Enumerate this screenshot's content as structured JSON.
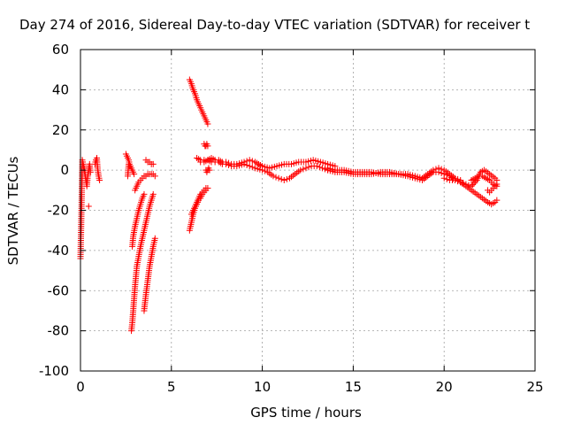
{
  "chart_data": {
    "type": "scatter",
    "title": "Day 274 of 2016, Sidereal Day-to-day VTEC variation (SDTVAR) for receiver t",
    "xlabel": "GPS time / hours",
    "ylabel": "SDTVAR / TECUs",
    "xlim": [
      0,
      25
    ],
    "ylim": [
      -100,
      60
    ],
    "xticks": [
      0,
      5,
      10,
      15,
      20,
      25
    ],
    "yticks": [
      -100,
      -80,
      -60,
      -40,
      -20,
      0,
      20,
      40,
      60
    ],
    "grid": true,
    "marker": "+",
    "color": "#ff0000",
    "segments": [
      {
        "x": [
          0,
          0.05,
          0.1,
          0.15,
          0.2
        ],
        "y": [
          -44,
          -22,
          5,
          3,
          0
        ]
      },
      {
        "x": [
          0.2,
          0.25,
          0.3,
          0.35,
          0.4,
          0.45,
          0.5,
          0.55
        ],
        "y": [
          1,
          -2,
          -5,
          -8,
          -3,
          0,
          3,
          -1
        ]
      },
      {
        "x": [
          0.45
        ],
        "y": [
          -18
        ]
      },
      {
        "x": [
          0.8,
          0.85,
          0.9,
          0.95,
          1.0,
          1.05
        ],
        "y": [
          3,
          5,
          6,
          0,
          -3,
          -5
        ]
      },
      {
        "x": [
          2.5,
          2.55,
          2.6,
          2.65,
          2.7,
          2.75,
          2.8,
          2.85,
          2.9,
          2.95
        ],
        "y": [
          8,
          7,
          6,
          5,
          3,
          2,
          1,
          0,
          -1,
          -2
        ]
      },
      {
        "x": [
          2.6,
          2.65,
          2.7
        ],
        "y": [
          -3,
          3,
          2
        ]
      },
      {
        "x": [
          2.8,
          2.85,
          2.9,
          2.95,
          3.0,
          3.05,
          3.1
        ],
        "y": [
          -80,
          -76,
          -70,
          -64,
          -58,
          -53,
          -48
        ]
      },
      {
        "x": [
          3.1,
          3.2,
          3.3,
          3.4,
          3.5,
          3.6,
          3.7,
          3.8,
          3.9,
          4.0
        ],
        "y": [
          -48,
          -43,
          -38,
          -34,
          -30,
          -26,
          -22,
          -18,
          -15,
          -12
        ]
      },
      {
        "x": [
          2.85,
          2.9,
          3.0,
          3.1,
          3.2,
          3.3,
          3.4,
          3.5
        ],
        "y": [
          -38,
          -33,
          -28,
          -24,
          -20,
          -17,
          -14,
          -12
        ]
      },
      {
        "x": [
          3.0,
          3.1,
          3.2,
          3.3,
          3.4,
          3.5,
          3.6,
          3.7,
          3.8,
          3.9,
          4.0,
          4.1
        ],
        "y": [
          -10,
          -8,
          -6,
          -5,
          -4,
          -3,
          -3,
          -2,
          -2,
          -2,
          -2,
          -3
        ]
      },
      {
        "x": [
          3.5,
          3.6,
          3.7,
          3.8,
          3.9,
          4.0,
          4.1
        ],
        "y": [
          -70,
          -62,
          -55,
          -48,
          -43,
          -38,
          -34
        ]
      },
      {
        "x": [
          3.6,
          3.7,
          3.8,
          3.9,
          4.0
        ],
        "y": [
          5,
          4,
          4,
          3,
          3
        ]
      },
      {
        "x": [
          6.0,
          6.1,
          6.2,
          6.3,
          6.4,
          6.5,
          6.6,
          6.7,
          6.8,
          6.9,
          7.0
        ],
        "y": [
          45,
          43,
          40,
          38,
          35,
          33,
          31,
          29,
          27,
          25,
          23
        ]
      },
      {
        "x": [
          6.0,
          6.1,
          6.2,
          6.3,
          6.4,
          6.5,
          6.6,
          6.7,
          6.8,
          6.9,
          7.0
        ],
        "y": [
          -30,
          -26,
          -22,
          -19,
          -17,
          -15,
          -14,
          -12,
          -11,
          -10,
          -9
        ]
      },
      {
        "x": [
          6.1,
          6.2,
          6.3,
          6.4,
          6.5,
          6.6,
          6.7,
          6.8,
          6.9
        ],
        "y": [
          -22,
          -20,
          -18,
          -16,
          -14,
          -12,
          -11,
          -10,
          -9
        ]
      },
      {
        "x": [
          6.8,
          6.85,
          6.9,
          6.95,
          7.0
        ],
        "y": [
          13,
          12,
          12,
          13,
          12
        ]
      },
      {
        "x": [
          6.4,
          6.6,
          6.8,
          7.0,
          7.2,
          7.4,
          7.6,
          7.8,
          8.0,
          8.3,
          8.6,
          9.0,
          9.3,
          9.6,
          10.0,
          10.4,
          10.8,
          11.2,
          11.6,
          12.0,
          12.4,
          12.8,
          13.2,
          13.6,
          14.0
        ],
        "y": [
          6,
          5,
          5,
          5,
          6,
          5,
          5,
          4,
          4,
          3,
          3,
          4,
          5,
          4,
          2,
          1,
          2,
          3,
          3,
          4,
          4,
          5,
          4,
          3,
          2
        ]
      },
      {
        "x": [
          6.6,
          6.8,
          7.0,
          7.2,
          7.4,
          7.6,
          7.8,
          8.0,
          8.3,
          8.6,
          9.0,
          9.3,
          9.6,
          10.0,
          10.3,
          10.6,
          10.9,
          11.2,
          11.5,
          11.8,
          12.1,
          12.4,
          12.7,
          13.0,
          13.3,
          13.6
        ],
        "y": [
          4,
          4,
          5,
          4,
          4,
          4,
          3,
          3,
          2,
          2,
          3,
          2,
          1,
          0,
          -1,
          -3,
          -4,
          -5,
          -4,
          -2,
          0,
          1,
          2,
          2,
          1,
          0
        ]
      },
      {
        "x": [
          6.9,
          6.95,
          7.0,
          7.05,
          7.1
        ],
        "y": [
          0,
          -1,
          0,
          1,
          0
        ]
      },
      {
        "x": [
          13.6,
          14.0,
          14.5,
          15.0,
          15.5,
          16.0,
          16.5,
          17.0,
          17.5,
          18.0,
          18.4,
          18.8,
          19.1,
          19.4,
          19.7,
          20.0,
          20.3,
          20.6,
          20.9
        ],
        "y": [
          0,
          -1,
          -1,
          -2,
          -2,
          -2,
          -1,
          -1,
          -2,
          -2,
          -3,
          -4,
          -2,
          0,
          1,
          0,
          -2,
          -4,
          -5
        ]
      },
      {
        "x": [
          13.6,
          14.0,
          14.5,
          15.0,
          15.5,
          16.0,
          16.5,
          17.0,
          17.5,
          18.0,
          18.4,
          18.8,
          19.1,
          19.4,
          19.7,
          20.0,
          20.3,
          20.6,
          20.9
        ],
        "y": [
          1,
          0,
          0,
          -1,
          -1,
          -1,
          -2,
          -2,
          -2,
          -3,
          -4,
          -5,
          -3,
          -1,
          -1,
          -2,
          -3,
          -5,
          -6
        ]
      },
      {
        "x": [
          20.0,
          20.3,
          20.6,
          20.9,
          21.2,
          21.5,
          21.8,
          22.0,
          22.2,
          22.5,
          22.8,
          22.9
        ],
        "y": [
          -4,
          -5,
          -5,
          -6,
          -7,
          -8,
          -5,
          -1,
          0,
          -2,
          -4,
          -5
        ]
      },
      {
        "x": [
          20.9,
          21.2,
          21.5,
          21.8,
          22.1,
          22.4,
          22.6,
          22.8,
          22.9
        ],
        "y": [
          -6,
          -8,
          -10,
          -12,
          -14,
          -16,
          -17,
          -16,
          -15
        ]
      },
      {
        "x": [
          21.5,
          21.7,
          21.9,
          22.1,
          22.3,
          22.5,
          22.7,
          22.9
        ],
        "y": [
          -5,
          -4,
          -3,
          -3,
          -4,
          -5,
          -7,
          -8
        ]
      },
      {
        "x": [
          22.4,
          22.5,
          22.6,
          22.7,
          22.8,
          22.9
        ],
        "y": [
          -10,
          -11,
          -10,
          -9,
          -8,
          -7
        ]
      }
    ]
  }
}
